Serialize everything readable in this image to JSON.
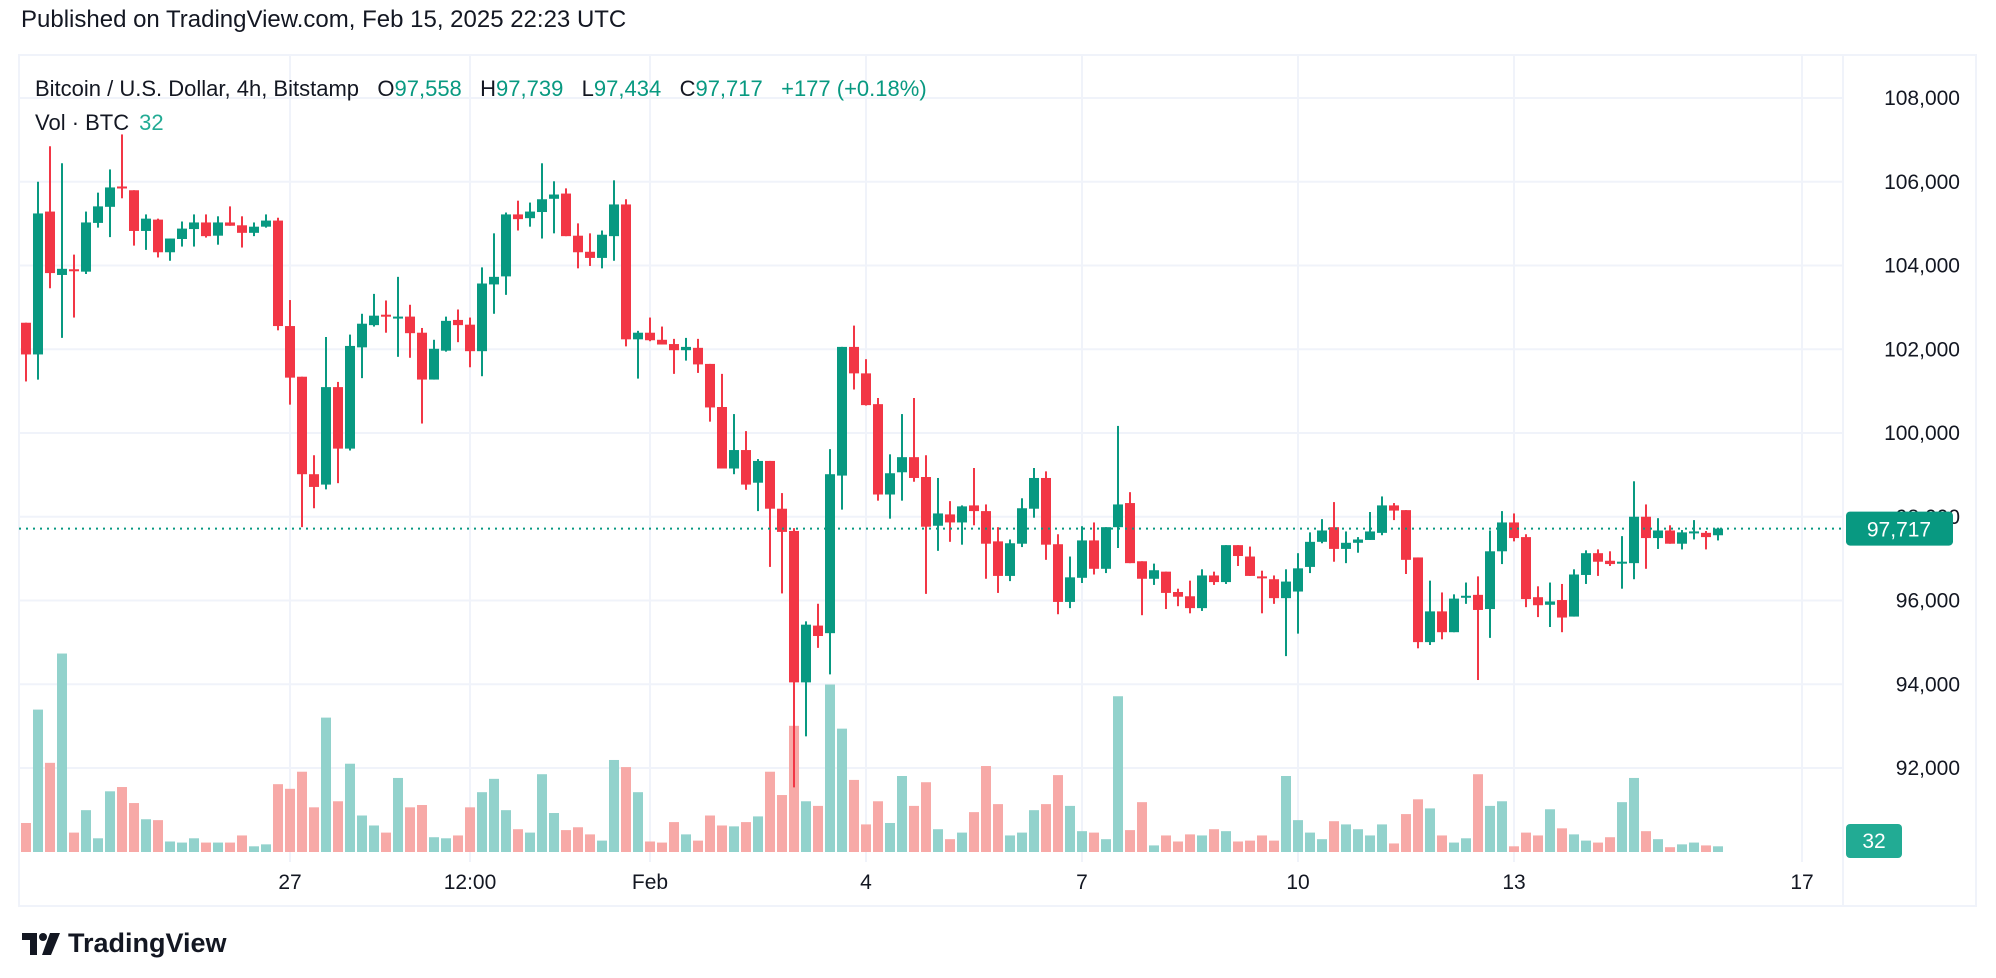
{
  "published": "Published on TradingView.com, Feb 15, 2025 22:23 UTC",
  "legend": {
    "symbol": "Bitcoin / U.S. Dollar, 4h, Bitstamp",
    "o_label": "O",
    "o": "97,558",
    "h_label": "H",
    "h": "97,739",
    "l_label": "L",
    "l": "97,434",
    "c_label": "C",
    "c": "97,717",
    "change": "+177 (+0.18%)"
  },
  "volume_legend": {
    "label": "Vol · BTC",
    "value": "32"
  },
  "footer": {
    "brand": "TradingView"
  },
  "colors": {
    "up": "#089981",
    "down": "#F23645",
    "vol_up": "#92D2CC",
    "vol_down": "#F7A9A7",
    "grid": "#F0F3FA",
    "last_price": "#089981",
    "last_volume": "#22AB94"
  },
  "chart_data": {
    "type": "candlestick",
    "title": "Bitcoin / U.S. Dollar, 4h, Bitstamp",
    "interval": "4h",
    "first_bar": "2025-01-23 08:00 UTC",
    "last_bar": "2025-02-15 20:00 UTC",
    "ylim": [
      90000,
      109000
    ],
    "grid": true,
    "y_ticks": [
      "108,000",
      "106,000",
      "104,000",
      "102,000",
      "100,000",
      "98,000",
      "96,000",
      "94,000",
      "92,000"
    ],
    "y_tick_values": [
      108000,
      106000,
      104000,
      102000,
      100000,
      98000,
      96000,
      94000,
      92000
    ],
    "x_ticks": [
      {
        "label": "27",
        "date": "2025-01-27 00:00"
      },
      {
        "label": "12:00",
        "date": "2025-01-29 12:00"
      },
      {
        "label": "Feb",
        "date": "2025-02-01 00:00"
      },
      {
        "label": "4",
        "date": "2025-02-04 00:00"
      },
      {
        "label": "7",
        "date": "2025-02-07 00:00"
      },
      {
        "label": "10",
        "date": "2025-02-10 00:00"
      },
      {
        "label": "13",
        "date": "2025-02-13 00:00"
      },
      {
        "label": "17",
        "date": "2025-02-17 00:00"
      }
    ],
    "last_price": 97717,
    "last_price_label": "97,717",
    "last_volume_label": "32",
    "columns": [
      "open",
      "high",
      "low",
      "close",
      "volume"
    ],
    "candles": [
      [
        102633,
        102633,
        101231,
        101876,
        163
      ],
      [
        101876,
        106000,
        101276,
        105243,
        800
      ],
      [
        105288,
        106848,
        103458,
        103819,
        501
      ],
      [
        103774,
        106441,
        102271,
        103921,
        1115
      ],
      [
        103910,
        104260,
        102757,
        103887,
        109
      ],
      [
        103853,
        105288,
        103797,
        105028,
        235
      ],
      [
        105017,
        105740,
        104904,
        105412,
        77
      ],
      [
        105401,
        106294,
        104678,
        105864,
        341
      ],
      [
        105887,
        107130,
        105605,
        105842,
        365
      ],
      [
        105797,
        105797,
        104475,
        104825,
        275
      ],
      [
        104825,
        105220,
        104373,
        105119,
        184
      ],
      [
        105096,
        105119,
        104192,
        104316,
        179
      ],
      [
        104316,
        104644,
        104113,
        104644,
        59
      ],
      [
        104633,
        105051,
        104452,
        104881,
        53
      ],
      [
        104870,
        105220,
        104452,
        105028,
        77
      ],
      [
        105028,
        105220,
        104667,
        104701,
        53
      ],
      [
        104712,
        105175,
        104497,
        105028,
        53
      ],
      [
        105028,
        105412,
        104949,
        104949,
        53
      ],
      [
        104960,
        105175,
        104429,
        104780,
        93
      ],
      [
        104780,
        105028,
        104701,
        104927,
        32
      ],
      [
        104927,
        105220,
        104904,
        105073,
        43
      ],
      [
        105073,
        105141,
        102452,
        102554,
        381
      ],
      [
        102554,
        103175,
        100677,
        101322,
        355
      ],
      [
        101344,
        101344,
        97751,
        99016,
        451
      ],
      [
        99016,
        99469,
        98203,
        98712,
        251
      ],
      [
        98768,
        102294,
        98655,
        101096,
        755
      ],
      [
        101096,
        101220,
        98802,
        99627,
        285
      ],
      [
        99627,
        102350,
        99582,
        102079,
        496
      ],
      [
        102045,
        102847,
        101310,
        102610,
        205
      ],
      [
        102576,
        103322,
        102542,
        102802,
        149
      ],
      [
        102825,
        103164,
        102395,
        102802,
        109
      ],
      [
        102746,
        103729,
        101819,
        102780,
        416
      ],
      [
        102780,
        103062,
        101796,
        102384,
        251
      ],
      [
        102395,
        102508,
        100226,
        101276,
        264
      ],
      [
        101276,
        102226,
        101276,
        102011,
        83
      ],
      [
        101966,
        102779,
        101943,
        102678,
        77
      ],
      [
        102700,
        102949,
        102169,
        102576,
        93
      ],
      [
        102587,
        102757,
        101570,
        101954,
        251
      ],
      [
        101954,
        103955,
        101356,
        103570,
        336
      ],
      [
        103548,
        104768,
        102847,
        103729,
        411
      ],
      [
        103740,
        105265,
        103299,
        105220,
        235
      ],
      [
        105220,
        105548,
        104836,
        105107,
        128
      ],
      [
        105130,
        105503,
        104927,
        105288,
        109
      ],
      [
        105277,
        106441,
        104644,
        105582,
        437
      ],
      [
        105593,
        106011,
        104768,
        105695,
        219
      ],
      [
        105718,
        105842,
        104701,
        104701,
        123
      ],
      [
        104712,
        105006,
        103932,
        104316,
        139
      ],
      [
        104328,
        104768,
        103989,
        104181,
        99
      ],
      [
        104181,
        104836,
        103932,
        104735,
        64
      ],
      [
        104701,
        106034,
        104113,
        105458,
        517
      ],
      [
        105458,
        105582,
        102068,
        102237,
        477
      ],
      [
        102237,
        102440,
        101299,
        102395,
        336
      ],
      [
        102395,
        102757,
        102192,
        102215,
        59
      ],
      [
        102226,
        102542,
        102113,
        102113,
        53
      ],
      [
        102124,
        102248,
        101412,
        101977,
        168
      ],
      [
        101977,
        102271,
        101729,
        102056,
        99
      ],
      [
        102034,
        102248,
        101435,
        101638,
        64
      ],
      [
        101650,
        101650,
        100271,
        100610,
        205
      ],
      [
        100621,
        101412,
        99152,
        99152,
        149
      ],
      [
        99152,
        100452,
        99016,
        99593,
        144
      ],
      [
        99593,
        100045,
        98644,
        98768,
        168
      ],
      [
        98813,
        99378,
        98135,
        99333,
        200
      ],
      [
        99333,
        99333,
        96802,
        98192,
        451
      ],
      [
        98192,
        98565,
        96169,
        97638,
        320
      ],
      [
        97661,
        97729,
        91536,
        94045,
        709
      ],
      [
        94045,
        95502,
        92756,
        95423,
        285
      ],
      [
        95401,
        95922,
        94869,
        95152,
        259
      ],
      [
        95220,
        99615,
        94237,
        99016,
        941
      ],
      [
        98983,
        102056,
        98169,
        102056,
        693
      ],
      [
        102056,
        102565,
        101039,
        101424,
        405
      ],
      [
        101424,
        101763,
        100655,
        100666,
        155
      ],
      [
        100689,
        100836,
        98384,
        98531,
        285
      ],
      [
        98531,
        99491,
        97954,
        99039,
        163
      ],
      [
        99062,
        100452,
        98384,
        99423,
        427
      ],
      [
        99423,
        100836,
        98836,
        98926,
        259
      ],
      [
        98949,
        99469,
        96158,
        97762,
        392
      ],
      [
        97785,
        98926,
        97186,
        98079,
        128
      ],
      [
        98056,
        98373,
        97401,
        97864,
        72
      ],
      [
        97864,
        98271,
        97333,
        98248,
        109
      ],
      [
        98271,
        99164,
        97796,
        98135,
        224
      ],
      [
        98135,
        98294,
        96519,
        97356,
        483
      ],
      [
        97412,
        97751,
        96181,
        96587,
        269
      ],
      [
        96587,
        97457,
        96463,
        97367,
        93
      ],
      [
        97356,
        98441,
        97276,
        98203,
        109
      ],
      [
        98192,
        99164,
        97977,
        98926,
        235
      ],
      [
        98926,
        99084,
        96971,
        97333,
        269
      ],
      [
        97344,
        97582,
        95672,
        95966,
        432
      ],
      [
        95966,
        97050,
        95818,
        96553,
        259
      ],
      [
        96542,
        97774,
        96418,
        97435,
        117
      ],
      [
        97435,
        97864,
        96621,
        96757,
        109
      ],
      [
        96757,
        97751,
        96655,
        97751,
        72
      ],
      [
        97751,
        100169,
        97254,
        98294,
        875
      ],
      [
        98327,
        98587,
        96892,
        96892,
        123
      ],
      [
        96937,
        96937,
        95649,
        96519,
        280
      ],
      [
        96519,
        96881,
        96372,
        96723,
        37
      ],
      [
        96689,
        96689,
        95796,
        96181,
        93
      ],
      [
        96203,
        96282,
        95864,
        96090,
        59
      ],
      [
        96101,
        96474,
        95694,
        95818,
        99
      ],
      [
        95818,
        96745,
        95751,
        96598,
        93
      ],
      [
        96598,
        96689,
        96372,
        96440,
        128
      ],
      [
        96440,
        97322,
        96395,
        97322,
        117
      ],
      [
        97322,
        97322,
        96824,
        97062,
        59
      ],
      [
        97050,
        97288,
        96587,
        96587,
        64
      ],
      [
        96576,
        96712,
        95694,
        96531,
        93
      ],
      [
        96508,
        96598,
        95920,
        96056,
        64
      ],
      [
        96056,
        96745,
        94672,
        96452,
        427
      ],
      [
        96214,
        97130,
        95209,
        96768,
        179
      ],
      [
        96802,
        97627,
        96655,
        97401,
        109
      ],
      [
        97401,
        97943,
        97367,
        97672,
        72
      ],
      [
        97751,
        98350,
        96926,
        97232,
        173
      ],
      [
        97232,
        97649,
        96892,
        97378,
        155
      ],
      [
        97378,
        97514,
        97141,
        97457,
        128
      ],
      [
        97446,
        98113,
        97446,
        97649,
        93
      ],
      [
        97615,
        98485,
        97559,
        98271,
        155
      ],
      [
        98271,
        98327,
        97920,
        98147,
        48
      ],
      [
        98158,
        98158,
        96633,
        96971,
        213
      ],
      [
        97028,
        97028,
        94858,
        95006,
        296
      ],
      [
        95006,
        96474,
        94938,
        95740,
        245
      ],
      [
        95740,
        96192,
        95073,
        95243,
        93
      ],
      [
        95243,
        96147,
        95243,
        96045,
        53
      ],
      [
        96068,
        96429,
        95920,
        96113,
        77
      ],
      [
        96135,
        96576,
        94101,
        95774,
        437
      ],
      [
        95796,
        97672,
        95107,
        97175,
        259
      ],
      [
        97175,
        98135,
        96870,
        97864,
        285
      ],
      [
        97864,
        98079,
        97412,
        97491,
        32
      ],
      [
        97514,
        97582,
        95841,
        96034,
        109
      ],
      [
        96079,
        96339,
        95604,
        95887,
        93
      ],
      [
        95898,
        96429,
        95367,
        95977,
        240
      ],
      [
        96011,
        96395,
        95243,
        95593,
        133
      ],
      [
        95616,
        96745,
        95616,
        96621,
        99
      ],
      [
        96610,
        97198,
        96395,
        97130,
        64
      ],
      [
        97130,
        97220,
        96587,
        96926,
        53
      ],
      [
        96949,
        97175,
        96825,
        96870,
        83
      ],
      [
        96904,
        97537,
        96282,
        96927,
        280
      ],
      [
        96892,
        98847,
        96508,
        98000,
        416
      ],
      [
        98000,
        98294,
        96757,
        97491,
        117
      ],
      [
        97491,
        97966,
        97231,
        97672,
        72
      ],
      [
        97672,
        97796,
        97356,
        97356,
        27
      ],
      [
        97356,
        97683,
        97220,
        97627,
        43
      ],
      [
        97616,
        97920,
        97458,
        97650,
        53
      ],
      [
        97616,
        97660,
        97220,
        97514,
        37
      ],
      [
        97558,
        97739,
        97434,
        97717,
        32
      ]
    ]
  }
}
